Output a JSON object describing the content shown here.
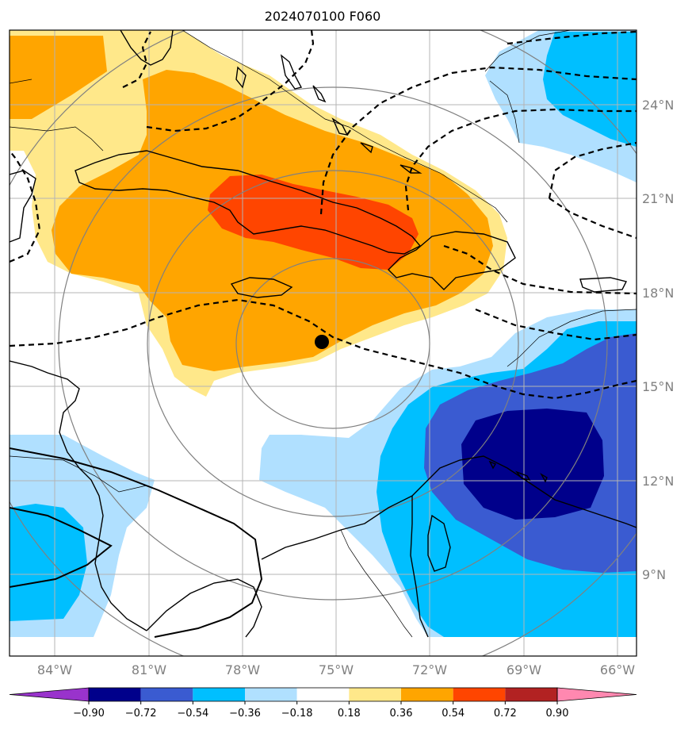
{
  "title": "2024070100 F060",
  "lat_labels": [
    "24°N",
    "21°N",
    "18°N",
    "15°N",
    "12°N",
    "9°N"
  ],
  "lon_labels": [
    "84°W",
    "81°W",
    "78°W",
    "75°W",
    "72°W",
    "69°W",
    "66°W"
  ],
  "colorbar": {
    "tick_labels": [
      "−0.90",
      "−0.72",
      "−0.54",
      "−0.36",
      "−0.18",
      "0.18",
      "0.36",
      "0.54",
      "0.72",
      "0.90"
    ],
    "colors": [
      "#9933cc",
      "#00008b",
      "#3a5bd1",
      "#00bfff",
      "#b0e0ff",
      "#ffffff",
      "#ffe88a",
      "#ffa500",
      "#ff4500",
      "#b22222",
      "#ff88b0"
    ]
  },
  "colors": {
    "frame": "#000000",
    "grid": "#b4b4b4",
    "range_rings": "#808080",
    "contour": "#000000"
  },
  "marker": "storm-center-dot"
}
